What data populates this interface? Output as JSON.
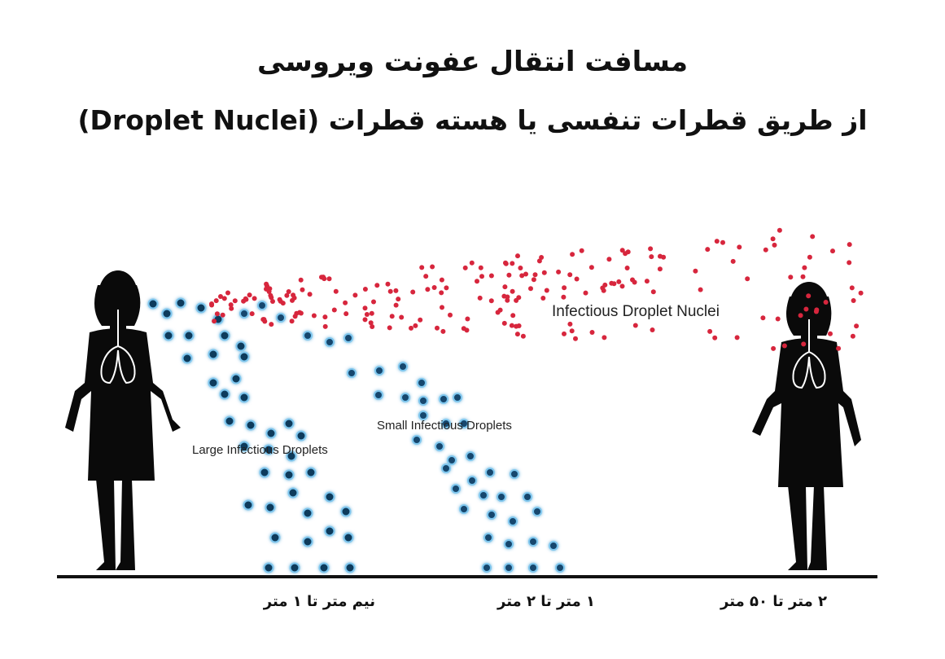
{
  "title_line1": "مسافت انتقال عفونت ویروسی",
  "title_line2": "از طریق قطرات تنفسی یا هسته قطرات (Droplet Nuclei)",
  "labels": {
    "large": "Large Infectious Droplets",
    "small": "Small Infectious Droplets",
    "nuclei": "Infectious Droplet Nuclei"
  },
  "distances": {
    "near": "نیم متر تا ۱ متر",
    "mid": "۱ متر تا ۲ متر",
    "far": "۲ متر تا ۵۰ متر"
  },
  "colors": {
    "large_droplet": "#0d3a5c",
    "small_droplet": "#12476e",
    "nuclei": "#d7263d",
    "silhouette": "#0a0a0a",
    "ground": "#111111"
  }
}
